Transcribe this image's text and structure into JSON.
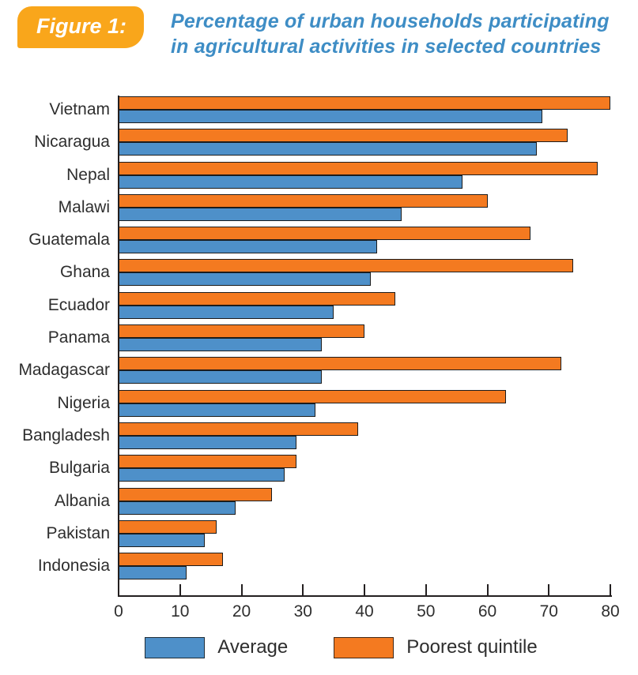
{
  "figure": {
    "badge_label": "Figure 1:",
    "title_line1": "Percentage of urban households participating",
    "title_line2": "in agricultural activities in selected countries"
  },
  "colors": {
    "badge_bg": "#F9A61B",
    "title_text": "#3E8DC5",
    "average_bar": "#4E90C9",
    "poorest_bar": "#F47A20",
    "bar_border": "#1C1C1C",
    "axis": "#231F20",
    "label_text": "#2E2E2E"
  },
  "chart_data": {
    "type": "bar",
    "orientation": "horizontal",
    "title": "Percentage of urban households participating in agricultural activities in selected countries",
    "categories": [
      "Vietnam",
      "Nicaragua",
      "Nepal",
      "Malawi",
      "Guatemala",
      "Ghana",
      "Ecuador",
      "Panama",
      "Madagascar",
      "Nigeria",
      "Bangladesh",
      "Bulgaria",
      "Albania",
      "Pakistan",
      "Indonesia"
    ],
    "series": [
      {
        "name": "Poorest quintile",
        "color": "#F47A20",
        "values": [
          80,
          73,
          78,
          60,
          67,
          74,
          45,
          40,
          72,
          63,
          39,
          29,
          25,
          16,
          17
        ]
      },
      {
        "name": "Average",
        "color": "#4E90C9",
        "values": [
          69,
          68,
          56,
          46,
          42,
          41,
          35,
          33,
          33,
          32,
          29,
          27,
          19,
          14,
          11
        ]
      }
    ],
    "xlabel": "",
    "ylabel": "",
    "xlim": [
      0,
      80
    ],
    "x_ticks": [
      0,
      10,
      20,
      30,
      40,
      50,
      60,
      70,
      80
    ],
    "grid": false,
    "legend_position": "bottom",
    "bar_stack_order": "poorest quintile bar drawn above average bar for each country"
  }
}
